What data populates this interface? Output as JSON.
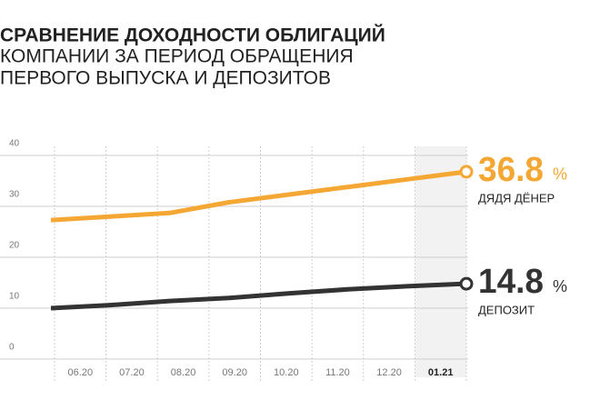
{
  "chart_data": {
    "type": "line",
    "title": "СРАВНЕНИЕ ДОХОДНОСТИ ОБЛИГАЦИЙ",
    "subtitle": [
      "КОМПАНИИ ЗА ПЕРИОД ОБРАЩЕНИЯ",
      "ПЕРВОГО ВЫПУСКА И ДЕПОЗИТОВ"
    ],
    "categories": [
      "06.20",
      "07.20",
      "08.20",
      "09.20",
      "10.20",
      "11.20",
      "12.20",
      "01.21"
    ],
    "highlight_category": 7,
    "unit": "%",
    "series": [
      {
        "name": "ДЯДЯ ДЁНЕР",
        "color": "#f5a733",
        "values": [
          27.3,
          28.0,
          28.7,
          30.8,
          32.3,
          33.8,
          35.3,
          36.8
        ]
      },
      {
        "name": "ДЕПОЗИТ",
        "color": "#333333",
        "values": [
          10.0,
          10.6,
          11.4,
          12.0,
          12.9,
          13.7,
          14.3,
          14.8
        ]
      }
    ],
    "ylim": [
      0,
      40
    ],
    "yticks": [
      0,
      10,
      20,
      30,
      40
    ],
    "grid": true
  }
}
